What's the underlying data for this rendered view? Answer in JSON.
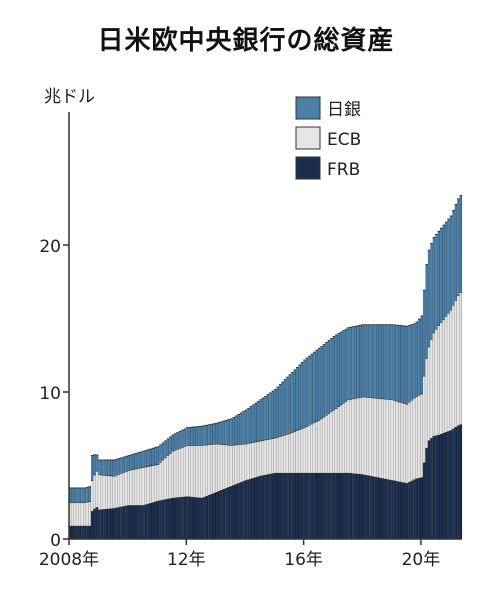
{
  "chart_data": {
    "type": "area",
    "stacked": true,
    "title": "日米欧中央銀行の総資産",
    "yunit": "兆ドル",
    "ylim": [
      0,
      23.5
    ],
    "yticks": [
      {
        "v": 0,
        "label": "0"
      },
      {
        "v": 10,
        "label": "10"
      },
      {
        "v": 20,
        "label": "20"
      }
    ],
    "xlim": [
      2008.0,
      2021.4
    ],
    "xticks": [
      {
        "v": 2008,
        "label": "2008年"
      },
      {
        "v": 2012,
        "label": "12年"
      },
      {
        "v": 2016,
        "label": "16年"
      },
      {
        "v": 2020,
        "label": "20年"
      }
    ],
    "grid": false,
    "legend_position": "top-right",
    "x": [
      2008.0,
      2008.5,
      2008.7,
      2008.75,
      2008.9,
      2009.0,
      2009.5,
      2010.0,
      2010.5,
      2011.0,
      2011.5,
      2012.0,
      2012.5,
      2013.0,
      2013.5,
      2014.0,
      2014.5,
      2015.0,
      2015.5,
      2016.0,
      2016.5,
      2017.0,
      2017.5,
      2018.0,
      2018.5,
      2019.0,
      2019.5,
      2019.8,
      2020.0,
      2020.2,
      2020.4,
      2020.6,
      2021.0,
      2021.3
    ],
    "series": [
      {
        "name": "FRB",
        "color": "#1b2e4d",
        "values": [
          0.9,
          0.9,
          0.9,
          1.9,
          2.2,
          2.0,
          2.1,
          2.3,
          2.3,
          2.6,
          2.8,
          2.9,
          2.8,
          3.2,
          3.6,
          4.0,
          4.3,
          4.5,
          4.5,
          4.5,
          4.5,
          4.5,
          4.5,
          4.4,
          4.2,
          4.0,
          3.8,
          4.1,
          4.2,
          6.6,
          7.0,
          7.1,
          7.4,
          7.8
        ]
      },
      {
        "name": "ECB",
        "color": "#e6e6e6",
        "values": [
          1.6,
          1.6,
          1.7,
          2.1,
          2.5,
          2.4,
          2.2,
          2.4,
          2.6,
          2.5,
          3.2,
          3.5,
          3.6,
          3.3,
          2.8,
          2.5,
          2.4,
          2.4,
          2.7,
          3.1,
          3.6,
          4.3,
          5.0,
          5.3,
          5.4,
          5.5,
          5.4,
          5.6,
          5.7,
          6.2,
          7.0,
          7.5,
          8.2,
          9.0
        ]
      },
      {
        "name": "日銀",
        "color": "#4c7fa6",
        "values": [
          1.0,
          1.0,
          1.0,
          1.7,
          1.1,
          1.0,
          1.1,
          1.0,
          1.1,
          1.2,
          1.1,
          1.2,
          1.3,
          1.4,
          1.8,
          2.3,
          2.8,
          3.3,
          4.0,
          4.6,
          4.9,
          5.0,
          4.9,
          4.9,
          5.0,
          5.1,
          5.3,
          5.0,
          5.3,
          6.6,
          6.5,
          6.4,
          6.4,
          6.6
        ]
      }
    ]
  }
}
